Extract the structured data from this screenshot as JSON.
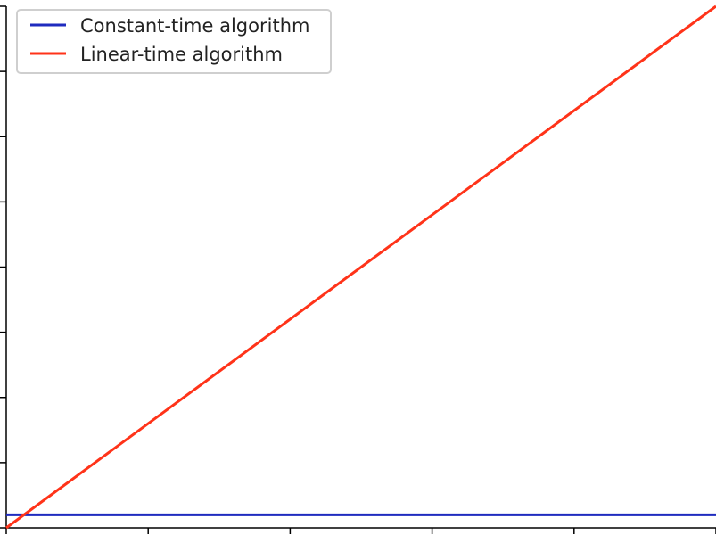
{
  "chart_data": {
    "type": "line",
    "title": "",
    "xlabel": "",
    "ylabel": "",
    "x": [
      0,
      5
    ],
    "xlim": [
      0,
      5
    ],
    "ylim": [
      0,
      8
    ],
    "grid": false,
    "legend_position": "top-left",
    "series": [
      {
        "name": "Constant-time algorithm",
        "color": "#1f2bbf",
        "x": [
          0,
          5
        ],
        "y": [
          0.2,
          0.2
        ]
      },
      {
        "name": "Linear-time algorithm",
        "color": "#ff3319",
        "x": [
          0,
          5
        ],
        "y": [
          0,
          8
        ]
      }
    ]
  }
}
